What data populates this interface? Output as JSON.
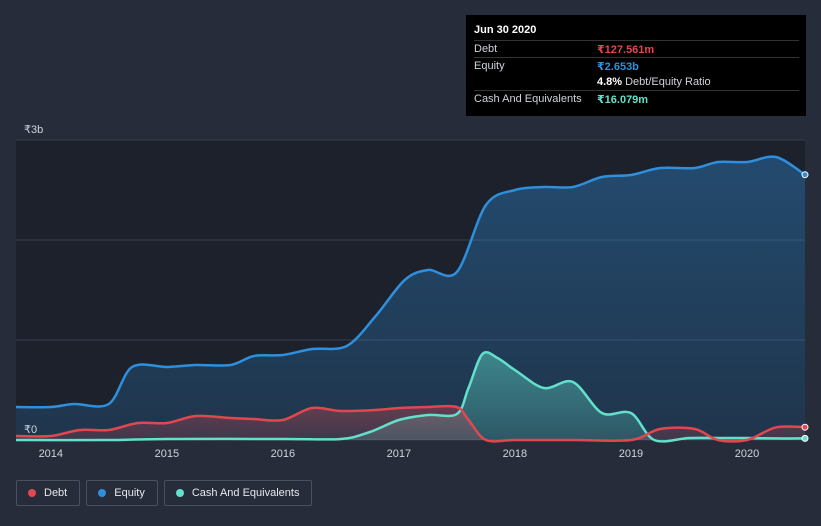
{
  "chart_data": {
    "type": "area",
    "title": "",
    "xlabel": "",
    "ylabel": "",
    "x_tick_labels": [
      "2014",
      "2015",
      "2016",
      "2017",
      "2018",
      "2019",
      "2020"
    ],
    "x_ticks": [
      2014.0,
      2015.0,
      2016.0,
      2017.0,
      2018.0,
      2019.0,
      2020.0
    ],
    "xlim": [
      2013.7,
      2020.5
    ],
    "y_tick_labels": [
      "₹3b",
      "₹0"
    ],
    "y_ticks": [
      3.0,
      0.0
    ],
    "ylim": [
      0,
      3.0
    ],
    "unit": "₹ billions",
    "series": [
      {
        "name": "Equity",
        "color": "#2f8fdc",
        "x": [
          2013.7,
          2014.0,
          2014.2,
          2014.5,
          2014.7,
          2015.0,
          2015.25,
          2015.55,
          2015.75,
          2016.0,
          2016.25,
          2016.55,
          2016.8,
          2017.05,
          2017.25,
          2017.5,
          2017.75,
          2018.0,
          2018.25,
          2018.5,
          2018.75,
          2019.0,
          2019.25,
          2019.55,
          2019.75,
          2020.0,
          2020.25,
          2020.5
        ],
        "values": [
          0.33,
          0.33,
          0.36,
          0.36,
          0.73,
          0.73,
          0.75,
          0.75,
          0.84,
          0.85,
          0.91,
          0.94,
          1.24,
          1.6,
          1.7,
          1.68,
          2.35,
          2.5,
          2.53,
          2.53,
          2.63,
          2.65,
          2.72,
          2.72,
          2.78,
          2.78,
          2.83,
          2.653
        ]
      },
      {
        "name": "Debt",
        "color": "#e2474f",
        "x": [
          2013.7,
          2014.0,
          2014.25,
          2014.5,
          2014.75,
          2015.0,
          2015.25,
          2015.55,
          2015.75,
          2016.0,
          2016.25,
          2016.5,
          2016.8,
          2017.0,
          2017.25,
          2017.5,
          2017.6,
          2017.75,
          2018.0,
          2018.5,
          2019.0,
          2019.25,
          2019.55,
          2019.75,
          2020.0,
          2020.25,
          2020.5
        ],
        "values": [
          0.04,
          0.04,
          0.1,
          0.1,
          0.17,
          0.17,
          0.24,
          0.22,
          0.21,
          0.2,
          0.32,
          0.29,
          0.3,
          0.32,
          0.33,
          0.33,
          0.2,
          0.0,
          0.0,
          0.0,
          0.0,
          0.11,
          0.11,
          0.0,
          0.0,
          0.127,
          0.128
        ]
      },
      {
        "name": "Cash And Equivalents",
        "color": "#62e0cc",
        "x": [
          2013.7,
          2014.5,
          2015.0,
          2016.0,
          2016.5,
          2016.75,
          2017.0,
          2017.25,
          2017.5,
          2017.6,
          2017.72,
          2017.85,
          2018.0,
          2018.25,
          2018.5,
          2018.75,
          2019.0,
          2019.2,
          2019.5,
          2019.75,
          2020.0,
          2020.25,
          2020.5
        ],
        "values": [
          0.0,
          0.0,
          0.01,
          0.01,
          0.01,
          0.08,
          0.2,
          0.25,
          0.26,
          0.52,
          0.86,
          0.82,
          0.7,
          0.52,
          0.58,
          0.27,
          0.27,
          0.0,
          0.02,
          0.02,
          0.02,
          0.016,
          0.016
        ]
      }
    ],
    "tooltip": {
      "date": "Jun 30 2020",
      "rows": [
        {
          "label": "Debt",
          "value": "₹127.561m",
          "color": "#e2474f"
        },
        {
          "label": "Equity",
          "value": "₹2.653b",
          "color": "#2f8fdc"
        },
        {
          "label": "",
          "value": "4.8%",
          "suffix": "Debt/Equity Ratio",
          "color": "#ffffff"
        },
        {
          "label": "Cash And Equivalents",
          "value": "₹16.079m",
          "color": "#62e0cc"
        }
      ]
    },
    "legend": [
      "Debt",
      "Equity",
      "Cash And Equivalents"
    ],
    "legend_position": "bottom-left",
    "grid": true
  }
}
